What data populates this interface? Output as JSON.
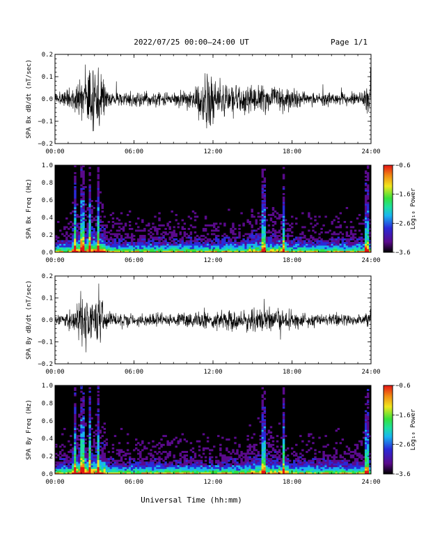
{
  "header": {
    "title": "2022/07/25  00:00–24:00 UT",
    "page_label": "Page 1/1"
  },
  "footer": {
    "xlabel": "Universal Time (hh:mm)"
  },
  "colors": {
    "trace": "#000000",
    "spec_background": "#000000",
    "colormap": [
      "#000000",
      "#5a0a8c",
      "#2a2ad8",
      "#19b4f0",
      "#1ee0a0",
      "#36e13c",
      "#f0e61e",
      "#f08c14",
      "#e61414"
    ]
  },
  "chart_data": [
    {
      "type": "line",
      "ylabel": "SPA Bx dB/dt (nT/sec)",
      "x_tick_labels": [
        "00:00",
        "06:00",
        "12:00",
        "18:00",
        "24:00"
      ],
      "xlim": [
        0,
        24
      ],
      "ylim": [
        -0.2,
        0.2
      ],
      "y_ticks": [
        -0.2,
        -0.1,
        0.0,
        0.1,
        0.2
      ],
      "y_tick_labels": [
        "−0.2",
        "−0.1",
        "0.0",
        "0.1",
        "0.2"
      ],
      "envelope": {
        "x": [
          0,
          0.5,
          1,
          1.5,
          2,
          2.5,
          3,
          3.5,
          4,
          4.5,
          5,
          5.5,
          6,
          6.5,
          7,
          7.5,
          8,
          8.5,
          9,
          9.5,
          10,
          10.5,
          11,
          11.5,
          12,
          12.5,
          13,
          13.5,
          14,
          14.5,
          15,
          15.5,
          16,
          16.5,
          17,
          17.5,
          18,
          18.5,
          19,
          19.5,
          20,
          20.5,
          21,
          21.5,
          22,
          22.5,
          23,
          23.5,
          24
        ],
        "amplitude": [
          0.04,
          0.05,
          0.08,
          0.09,
          0.14,
          0.2,
          0.2,
          0.2,
          0.06,
          0.05,
          0.05,
          0.05,
          0.05,
          0.06,
          0.05,
          0.05,
          0.05,
          0.04,
          0.05,
          0.06,
          0.07,
          0.06,
          0.12,
          0.2,
          0.2,
          0.12,
          0.1,
          0.11,
          0.11,
          0.12,
          0.11,
          0.12,
          0.11,
          0.09,
          0.1,
          0.09,
          0.07,
          0.06,
          0.04,
          0.04,
          0.04,
          0.05,
          0.04,
          0.04,
          0.05,
          0.05,
          0.04,
          0.06,
          0.2
        ]
      }
    },
    {
      "type": "heatmap",
      "ylabel": "SPA Bx Freq (Hz)",
      "x_tick_labels": [
        "00:00",
        "06:00",
        "12:00",
        "18:00",
        "24:00"
      ],
      "xlim": [
        0,
        24
      ],
      "ylim": [
        0,
        1.0
      ],
      "y_tick_labels": [
        "0.0",
        "0.2",
        "0.4",
        "0.6",
        "0.8",
        "1.0"
      ],
      "colorbar": {
        "label": "Log₁₀ Power",
        "range": [
          -3.6,
          -0.6
        ],
        "tick_labels": [
          "−0.6",
          "−1.6",
          "−2.6",
          "−3.6"
        ]
      },
      "bright_vertical_bands_hours": [
        1.5,
        2.1,
        2.6,
        3.3,
        15.8,
        17.4,
        23.7
      ]
    },
    {
      "type": "line",
      "ylabel": "SPA By dB/dt (nT/sec)",
      "x_tick_labels": [
        "00:00",
        "06:00",
        "12:00",
        "18:00",
        "24:00"
      ],
      "xlim": [
        0,
        24
      ],
      "ylim": [
        -0.2,
        0.2
      ],
      "y_ticks": [
        -0.2,
        -0.1,
        0.0,
        0.1,
        0.2
      ],
      "y_tick_labels": [
        "−0.2",
        "−0.1",
        "0.0",
        "0.1",
        "0.2"
      ],
      "envelope": {
        "x": [
          0,
          0.5,
          1,
          1.5,
          2,
          2.5,
          3,
          3.5,
          4,
          4.5,
          5,
          5.5,
          6,
          6.5,
          7,
          7.5,
          8,
          8.5,
          9,
          9.5,
          10,
          10.5,
          11,
          11.5,
          12,
          12.5,
          13,
          13.5,
          14,
          14.5,
          15,
          15.5,
          16,
          16.5,
          17,
          17.5,
          18,
          18.5,
          19,
          19.5,
          20,
          20.5,
          21,
          21.5,
          22,
          22.5,
          23,
          23.5,
          24
        ],
        "amplitude": [
          0.03,
          0.04,
          0.06,
          0.08,
          0.2,
          0.2,
          0.2,
          0.2,
          0.05,
          0.04,
          0.05,
          0.05,
          0.05,
          0.04,
          0.04,
          0.05,
          0.04,
          0.04,
          0.04,
          0.05,
          0.05,
          0.05,
          0.06,
          0.06,
          0.06,
          0.06,
          0.06,
          0.07,
          0.07,
          0.08,
          0.09,
          0.1,
          0.1,
          0.08,
          0.07,
          0.07,
          0.06,
          0.05,
          0.05,
          0.05,
          0.04,
          0.04,
          0.04,
          0.05,
          0.04,
          0.04,
          0.04,
          0.05,
          0.1
        ]
      }
    },
    {
      "type": "heatmap",
      "ylabel": "SPA By Freq (Hz)",
      "x_tick_labels": [
        "00:00",
        "06:00",
        "12:00",
        "18:00",
        "24:00"
      ],
      "xlim": [
        0,
        24
      ],
      "ylim": [
        0,
        1.0
      ],
      "y_tick_labels": [
        "0.0",
        "0.2",
        "0.4",
        "0.6",
        "0.8",
        "1.0"
      ],
      "colorbar": {
        "label": "Log₁₀ Power",
        "range": [
          -3.6,
          -0.6
        ],
        "tick_labels": [
          "−0.6",
          "−1.6",
          "−2.6",
          "−3.6"
        ]
      },
      "bright_vertical_bands_hours": [
        1.5,
        2.1,
        2.6,
        3.3,
        15.8,
        17.4,
        23.7
      ]
    }
  ]
}
